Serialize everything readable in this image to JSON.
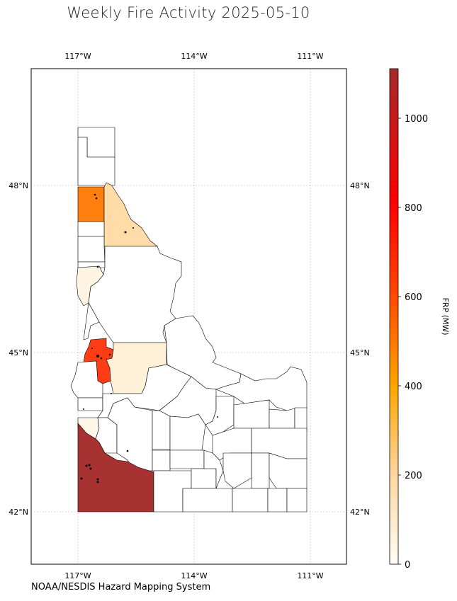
{
  "map": {
    "title": "Weekly Fire Activity 2025-05-10",
    "source_note": "NOAA/NESDIS Hazard Mapping System",
    "lon_labels": [
      "117°W",
      "114°W",
      "111°W"
    ],
    "lat_labels": [
      "48°N",
      "45°N",
      "42°N"
    ],
    "colorbar": {
      "label": "FRP (MW)",
      "ticks": [
        "0",
        "200",
        "400",
        "600",
        "800",
        "1000"
      ],
      "colors": {
        "low": "#fffdf5",
        "mid1": "#fed7a0",
        "mid2": "#ffa500",
        "mid3": "#ff4500",
        "high": "#ff0000",
        "max": "#a52a2a"
      }
    },
    "colors": {
      "orange_county": "#ff7f0e",
      "light_orange_county": "#ffdca8",
      "pale_county": "#fff3e1",
      "red_county": "#ff3c14",
      "dark_red_county": "#a83232",
      "empty_county": "#ffffff"
    }
  }
}
